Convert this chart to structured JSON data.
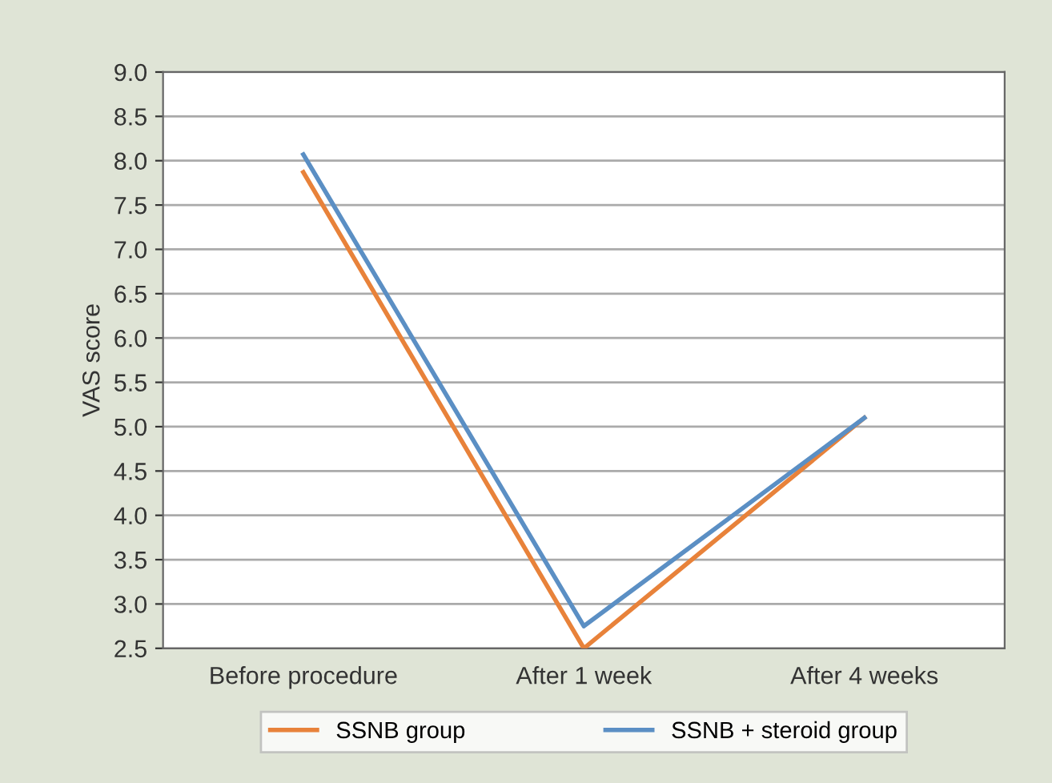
{
  "chart_data": {
    "type": "line",
    "ylabel": "VAS score",
    "categories": [
      "Before procedure",
      "After 1 week",
      "After 4 weeks"
    ],
    "series": [
      {
        "name": "SSNB group",
        "color": "#e8823a",
        "values": [
          7.87,
          2.5,
          5.1
        ]
      },
      {
        "name": "SSNB + steroid group",
        "color": "#5b8fc4",
        "values": [
          8.07,
          2.75,
          5.1
        ]
      }
    ],
    "ylim": [
      2.5,
      9.0
    ],
    "yticks": [
      {
        "value": 2.5,
        "label": "2.5"
      },
      {
        "value": 3.0,
        "label": "3.0"
      },
      {
        "value": 3.5,
        "label": "3.5"
      },
      {
        "value": 4.0,
        "label": "4.0"
      },
      {
        "value": 4.5,
        "label": "4.5"
      },
      {
        "value": 5.0,
        "label": "5.0"
      },
      {
        "value": 5.5,
        "label": "5.5"
      },
      {
        "value": 6.0,
        "label": "6.0"
      },
      {
        "value": 6.5,
        "label": "6.5"
      },
      {
        "value": 7.0,
        "label": "7.0"
      },
      {
        "value": 7.5,
        "label": "7.5"
      },
      {
        "value": 8.0,
        "label": "8.0"
      },
      {
        "value": 8.5,
        "label": "8.5"
      },
      {
        "value": 9.0,
        "label": "9.0"
      }
    ],
    "grid": "y",
    "legend": "bottom",
    "marker": "none",
    "line_style": "solid"
  }
}
